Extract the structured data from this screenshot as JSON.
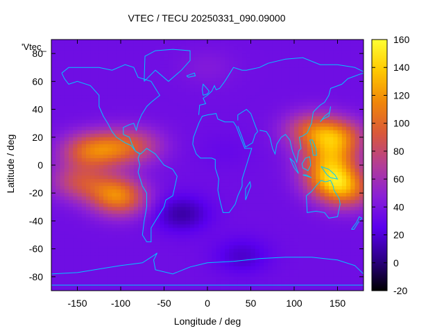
{
  "chart_data": {
    "type": "heatmap",
    "title": "VTEC / TECU 20250331_090.09000",
    "xlabel": "Longitude / deg",
    "ylabel": "Latitude / deg",
    "key_label": "'Vtec_",
    "xlim": [
      -180,
      180
    ],
    "ylim": [
      -90,
      90
    ],
    "xticks": [
      -150,
      -100,
      -50,
      0,
      50,
      100,
      150
    ],
    "yticks": [
      -80,
      -60,
      -40,
      -20,
      0,
      20,
      40,
      60,
      80
    ],
    "colorbar": {
      "range": [
        -20,
        160
      ],
      "ticks": [
        -20,
        0,
        20,
        40,
        60,
        80,
        100,
        120,
        140,
        160
      ],
      "palette": [
        "#000000",
        "#2d0087",
        "#5a00ee",
        "#8a1fd6",
        "#b33d96",
        "#d9583a",
        "#f0860a",
        "#ffc800",
        "#ffff33"
      ]
    },
    "features": [
      {
        "lon": -140,
        "lat": 10,
        "value": 95
      },
      {
        "lon": -110,
        "lat": 12,
        "value": 90
      },
      {
        "lon": -80,
        "lat": 14,
        "value": 75
      },
      {
        "lon": -150,
        "lat": -12,
        "value": 85
      },
      {
        "lon": -110,
        "lat": -18,
        "value": 82
      },
      {
        "lon": -100,
        "lat": -25,
        "value": 92
      },
      {
        "lon": 150,
        "lat": 20,
        "value": 112
      },
      {
        "lon": 140,
        "lat": 5,
        "value": 105
      },
      {
        "lon": 145,
        "lat": -10,
        "value": 130
      },
      {
        "lon": 160,
        "lat": -20,
        "value": 95
      },
      {
        "lon": 120,
        "lat": 25,
        "value": 95
      },
      {
        "lon": -30,
        "lat": -35,
        "value": 5
      },
      {
        "lon": 40,
        "lat": -65,
        "value": 15
      },
      {
        "lon": 20,
        "lat": 10,
        "value": 30
      },
      {
        "lon": 0,
        "lat": 70,
        "value": 45
      }
    ],
    "grid": false,
    "background_value": 35
  }
}
